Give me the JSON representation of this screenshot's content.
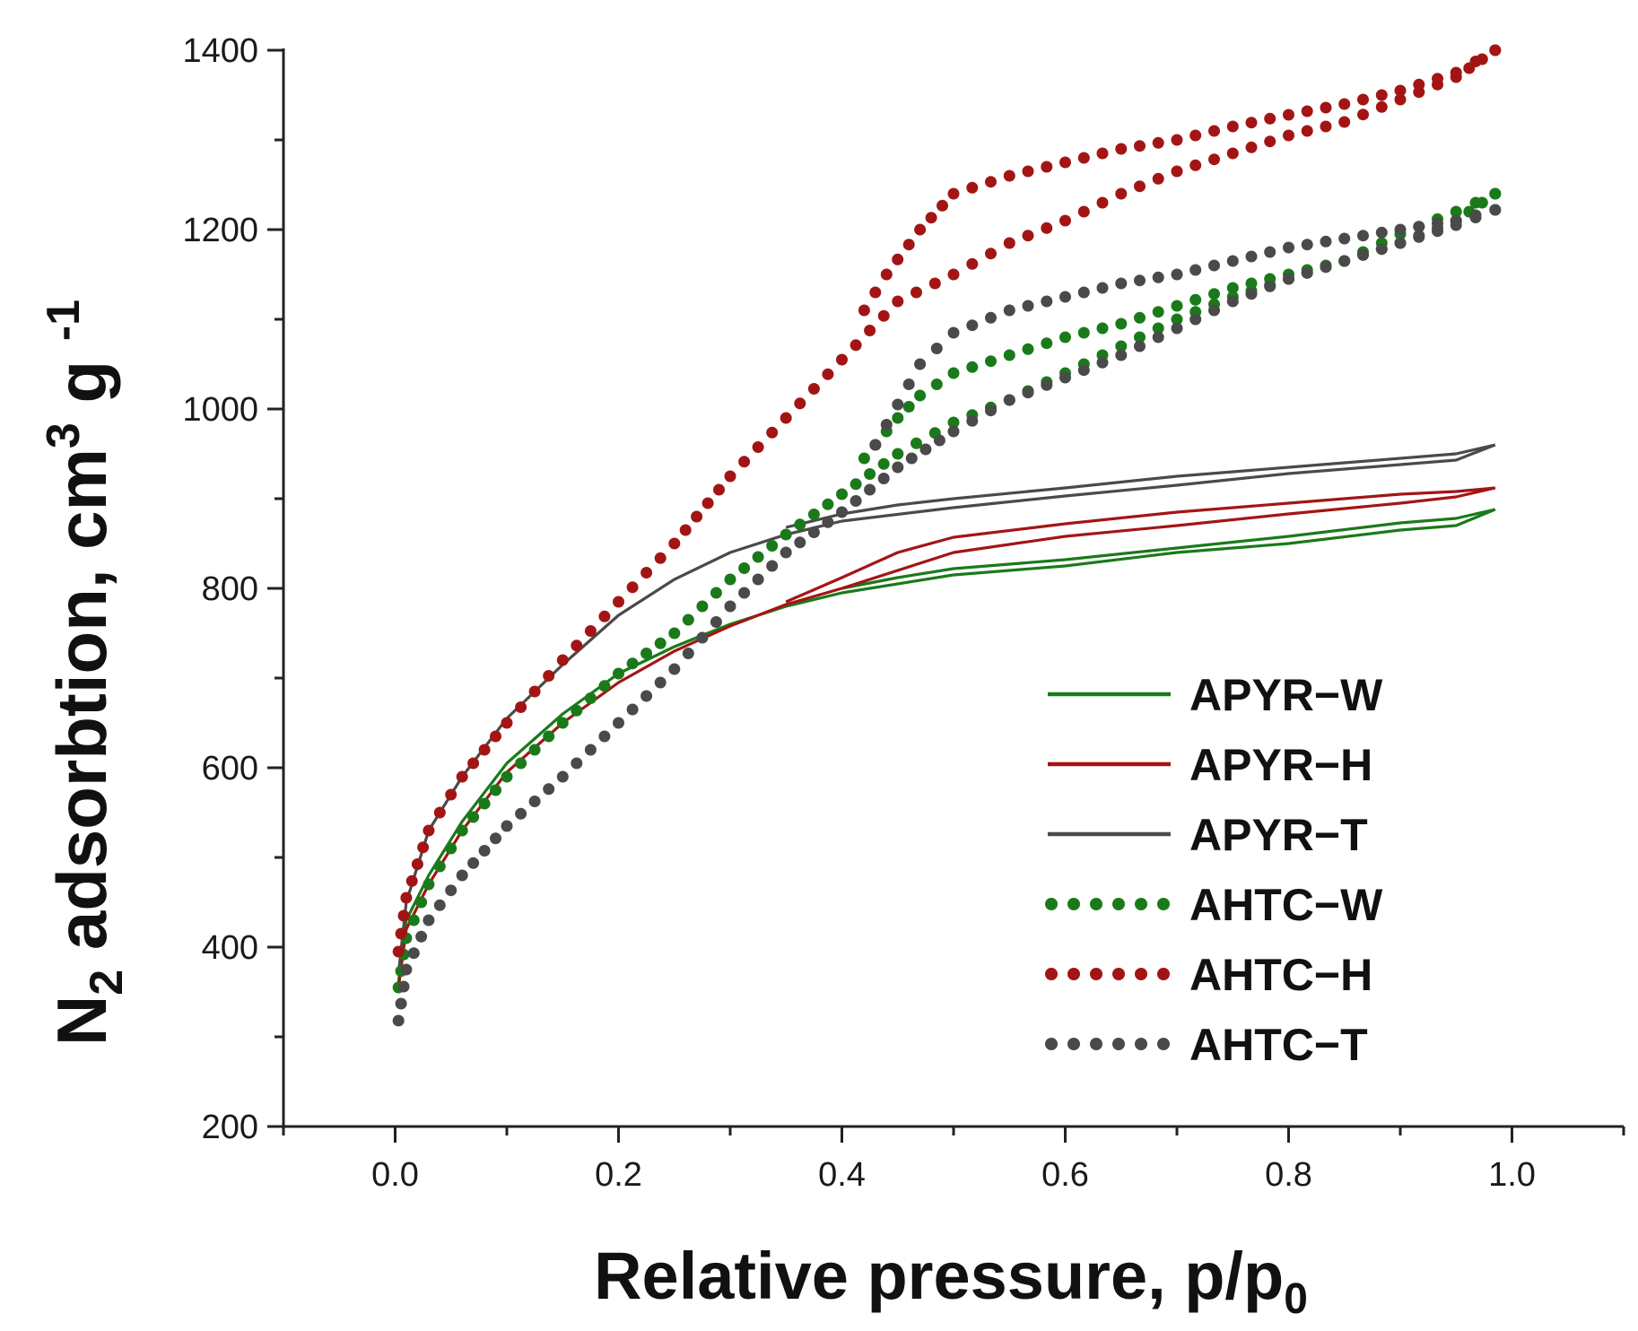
{
  "chart_data": {
    "type": "line",
    "title": "",
    "xlabel": "Relative pressure, p/p",
    "xlabel_sub": "0",
    "ylabel": "N",
    "ylabel_sub": "2",
    "ylabel_mid": " adsorbtion, cm",
    "ylabel_sup": "3",
    "ylabel_end": " g ",
    "ylabel_sup2": "-1",
    "xlim": [
      -0.1,
      1.1
    ],
    "ylim": [
      200,
      1400
    ],
    "xticks": [
      0.0,
      0.2,
      0.4,
      0.6,
      0.8,
      1.0
    ],
    "xtick_labels": [
      "0.0",
      "0.2",
      "0.4",
      "0.6",
      "0.8",
      "1.0"
    ],
    "yticks": [
      200,
      400,
      600,
      800,
      1000,
      1200,
      1400
    ],
    "ytick_labels": [
      "200",
      "400",
      "600",
      "800",
      "1000",
      "1200",
      "1400"
    ],
    "legend_position": "bottom-right",
    "series": [
      {
        "name": "APYR−W",
        "style": "solid",
        "color": "#1a7a1a",
        "adsorption": [
          [
            0.003,
            360
          ],
          [
            0.01,
            430
          ],
          [
            0.03,
            480
          ],
          [
            0.06,
            540
          ],
          [
            0.1,
            605
          ],
          [
            0.15,
            660
          ],
          [
            0.2,
            705
          ],
          [
            0.25,
            735
          ],
          [
            0.3,
            760
          ],
          [
            0.35,
            780
          ],
          [
            0.4,
            795
          ],
          [
            0.5,
            815
          ],
          [
            0.6,
            825
          ],
          [
            0.7,
            840
          ],
          [
            0.8,
            850
          ],
          [
            0.9,
            865
          ],
          [
            0.95,
            870
          ],
          [
            0.985,
            888
          ]
        ],
        "desorption": [
          [
            0.985,
            888
          ],
          [
            0.95,
            878
          ],
          [
            0.9,
            873
          ],
          [
            0.8,
            858
          ],
          [
            0.7,
            845
          ],
          [
            0.6,
            832
          ],
          [
            0.5,
            822
          ],
          [
            0.45,
            812
          ],
          [
            0.4,
            800
          ]
        ]
      },
      {
        "name": "APYR−H",
        "style": "solid",
        "color": "#a31515",
        "adsorption": [
          [
            0.003,
            355
          ],
          [
            0.01,
            420
          ],
          [
            0.03,
            470
          ],
          [
            0.06,
            530
          ],
          [
            0.1,
            595
          ],
          [
            0.15,
            650
          ],
          [
            0.2,
            695
          ],
          [
            0.25,
            730
          ],
          [
            0.3,
            758
          ],
          [
            0.35,
            782
          ],
          [
            0.4,
            800
          ],
          [
            0.5,
            840
          ],
          [
            0.6,
            858
          ],
          [
            0.7,
            870
          ],
          [
            0.8,
            883
          ],
          [
            0.9,
            895
          ],
          [
            0.95,
            902
          ],
          [
            0.985,
            912
          ]
        ],
        "desorption": [
          [
            0.985,
            912
          ],
          [
            0.95,
            908
          ],
          [
            0.9,
            905
          ],
          [
            0.8,
            895
          ],
          [
            0.7,
            885
          ],
          [
            0.6,
            872
          ],
          [
            0.5,
            857
          ],
          [
            0.45,
            840
          ],
          [
            0.4,
            812
          ],
          [
            0.35,
            785
          ]
        ]
      },
      {
        "name": "APYR−T",
        "style": "solid",
        "color": "#4a4a4a",
        "adsorption": [
          [
            0.003,
            370
          ],
          [
            0.01,
            450
          ],
          [
            0.03,
            530
          ],
          [
            0.06,
            590
          ],
          [
            0.1,
            655
          ],
          [
            0.15,
            715
          ],
          [
            0.2,
            770
          ],
          [
            0.25,
            810
          ],
          [
            0.3,
            840
          ],
          [
            0.35,
            860
          ],
          [
            0.4,
            875
          ],
          [
            0.5,
            890
          ],
          [
            0.6,
            903
          ],
          [
            0.7,
            915
          ],
          [
            0.8,
            928
          ],
          [
            0.9,
            938
          ],
          [
            0.95,
            943
          ],
          [
            0.985,
            960
          ]
        ],
        "desorption": [
          [
            0.985,
            960
          ],
          [
            0.95,
            950
          ],
          [
            0.9,
            945
          ],
          [
            0.8,
            935
          ],
          [
            0.7,
            925
          ],
          [
            0.6,
            912
          ],
          [
            0.5,
            900
          ],
          [
            0.45,
            893
          ],
          [
            0.4,
            883
          ],
          [
            0.35,
            868
          ]
        ]
      },
      {
        "name": "AHTC−W",
        "style": "dotted",
        "color": "#1a7a1a",
        "adsorption": [
          [
            0.003,
            355
          ],
          [
            0.01,
            410
          ],
          [
            0.03,
            470
          ],
          [
            0.06,
            530
          ],
          [
            0.1,
            590
          ],
          [
            0.15,
            650
          ],
          [
            0.2,
            705
          ],
          [
            0.25,
            750
          ],
          [
            0.3,
            810
          ],
          [
            0.35,
            860
          ],
          [
            0.4,
            905
          ],
          [
            0.45,
            950
          ],
          [
            0.5,
            985
          ],
          [
            0.55,
            1010
          ],
          [
            0.6,
            1040
          ],
          [
            0.65,
            1070
          ],
          [
            0.7,
            1100
          ],
          [
            0.75,
            1125
          ],
          [
            0.8,
            1145
          ],
          [
            0.85,
            1165
          ],
          [
            0.9,
            1185
          ],
          [
            0.95,
            1210
          ],
          [
            0.985,
            1240
          ]
        ],
        "desorption": [
          [
            0.985,
            1240
          ],
          [
            0.95,
            1220
          ],
          [
            0.9,
            1195
          ],
          [
            0.85,
            1165
          ],
          [
            0.8,
            1150
          ],
          [
            0.75,
            1135
          ],
          [
            0.7,
            1115
          ],
          [
            0.65,
            1095
          ],
          [
            0.6,
            1080
          ],
          [
            0.55,
            1060
          ],
          [
            0.5,
            1040
          ],
          [
            0.47,
            1015
          ],
          [
            0.45,
            990
          ],
          [
            0.42,
            945
          ]
        ]
      },
      {
        "name": "AHTC−H",
        "style": "dotted",
        "color": "#a31515",
        "adsorption": [
          [
            0.003,
            395
          ],
          [
            0.01,
            455
          ],
          [
            0.03,
            530
          ],
          [
            0.06,
            590
          ],
          [
            0.1,
            650
          ],
          [
            0.15,
            720
          ],
          [
            0.2,
            785
          ],
          [
            0.25,
            850
          ],
          [
            0.3,
            925
          ],
          [
            0.35,
            990
          ],
          [
            0.4,
            1055
          ],
          [
            0.45,
            1120
          ],
          [
            0.5,
            1150
          ],
          [
            0.55,
            1185
          ],
          [
            0.6,
            1210
          ],
          [
            0.65,
            1240
          ],
          [
            0.7,
            1265
          ],
          [
            0.75,
            1285
          ],
          [
            0.8,
            1305
          ],
          [
            0.85,
            1320
          ],
          [
            0.9,
            1345
          ],
          [
            0.95,
            1370
          ],
          [
            0.985,
            1400
          ]
        ],
        "desorption": [
          [
            0.985,
            1400
          ],
          [
            0.95,
            1375
          ],
          [
            0.9,
            1355
          ],
          [
            0.85,
            1340
          ],
          [
            0.8,
            1328
          ],
          [
            0.75,
            1315
          ],
          [
            0.7,
            1300
          ],
          [
            0.65,
            1290
          ],
          [
            0.6,
            1275
          ],
          [
            0.55,
            1260
          ],
          [
            0.5,
            1240
          ],
          [
            0.47,
            1200
          ],
          [
            0.44,
            1150
          ],
          [
            0.42,
            1110
          ]
        ]
      },
      {
        "name": "AHTC−T",
        "style": "dotted",
        "color": "#4a4a4a",
        "adsorption": [
          [
            0.003,
            318
          ],
          [
            0.01,
            375
          ],
          [
            0.03,
            430
          ],
          [
            0.06,
            480
          ],
          [
            0.1,
            535
          ],
          [
            0.15,
            590
          ],
          [
            0.2,
            650
          ],
          [
            0.25,
            710
          ],
          [
            0.3,
            780
          ],
          [
            0.35,
            840
          ],
          [
            0.4,
            885
          ],
          [
            0.45,
            935
          ],
          [
            0.5,
            975
          ],
          [
            0.55,
            1010
          ],
          [
            0.6,
            1035
          ],
          [
            0.65,
            1060
          ],
          [
            0.7,
            1090
          ],
          [
            0.75,
            1120
          ],
          [
            0.8,
            1145
          ],
          [
            0.85,
            1165
          ],
          [
            0.9,
            1185
          ],
          [
            0.95,
            1205
          ],
          [
            0.985,
            1222
          ]
        ],
        "desorption": [
          [
            0.985,
            1222
          ],
          [
            0.95,
            1210
          ],
          [
            0.9,
            1200
          ],
          [
            0.85,
            1190
          ],
          [
            0.8,
            1180
          ],
          [
            0.75,
            1165
          ],
          [
            0.7,
            1150
          ],
          [
            0.65,
            1140
          ],
          [
            0.6,
            1125
          ],
          [
            0.55,
            1110
          ],
          [
            0.5,
            1085
          ],
          [
            0.47,
            1050
          ],
          [
            0.45,
            1005
          ],
          [
            0.43,
            960
          ]
        ]
      }
    ]
  }
}
